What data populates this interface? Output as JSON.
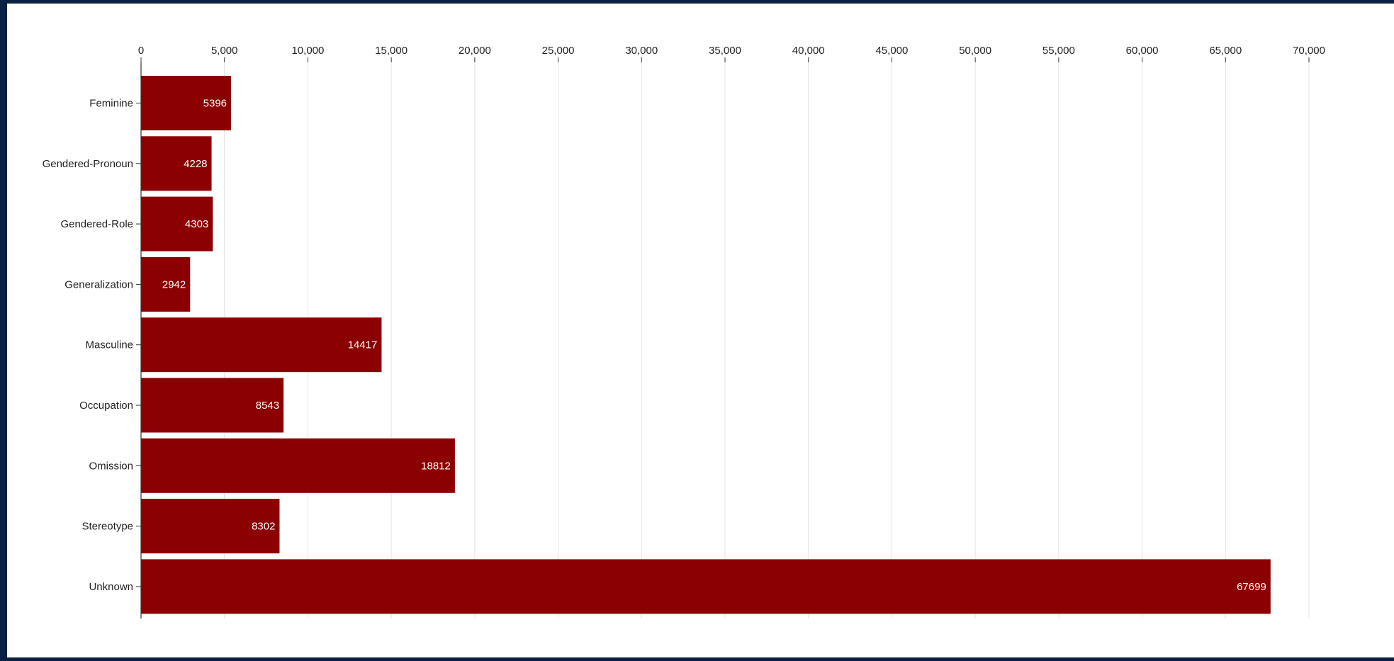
{
  "colors": {
    "background_frame": "#0a1f44",
    "panel": "#ffffff",
    "bar": "#8b0000",
    "grid": "#e3e3e3",
    "axis": "#333333",
    "data_label": "#ffffff"
  },
  "chart_data": {
    "type": "bar",
    "orientation": "horizontal",
    "title": "",
    "xlabel": "",
    "ylabel": "",
    "xlim": [
      0,
      70000
    ],
    "x_ticks": [
      0,
      5000,
      10000,
      15000,
      20000,
      25000,
      30000,
      35000,
      40000,
      45000,
      50000,
      55000,
      60000,
      65000,
      70000
    ],
    "x_tick_labels": [
      "0",
      "5,000",
      "10,000",
      "15,000",
      "20,000",
      "25,000",
      "30,000",
      "35,000",
      "40,000",
      "45,000",
      "50,000",
      "55,000",
      "60,000",
      "65,000",
      "70,000"
    ],
    "x_axis_position": "top",
    "grid": true,
    "legend": false,
    "categories": [
      "Feminine",
      "Gendered-Pronoun",
      "Gendered-Role",
      "Generalization",
      "Masculine",
      "Occupation",
      "Omission",
      "Stereotype",
      "Unknown"
    ],
    "values": [
      5396,
      4228,
      4303,
      2942,
      14417,
      8543,
      18812,
      8302,
      67699
    ],
    "data_labels": [
      "5396",
      "4228",
      "4303",
      "2942",
      "14417",
      "8543",
      "18812",
      "8302",
      "67699"
    ]
  }
}
